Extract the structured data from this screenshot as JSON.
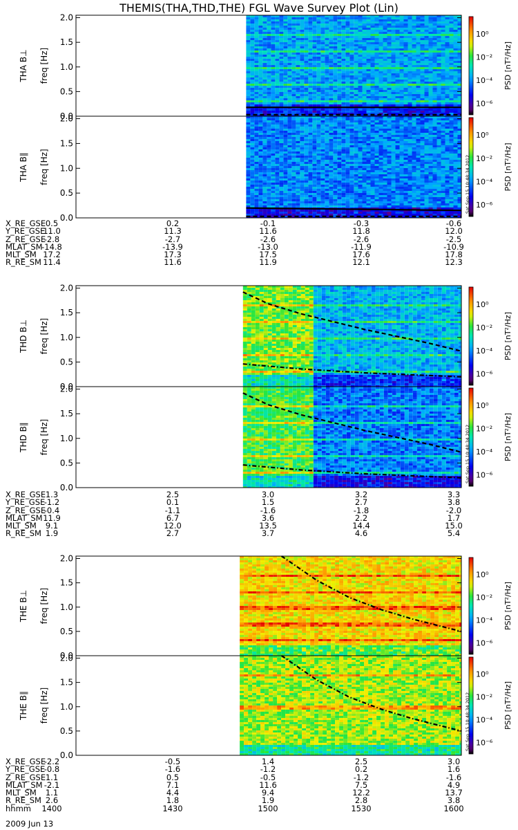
{
  "title": "THEMIS(THA,THD,THE) FGL Wave Survey Plot (Lin)",
  "colorbar": {
    "label": "PSD [nT²/Hz]",
    "ticks": [
      "10⁰",
      "10⁻²",
      "10⁻⁴",
      "10⁻⁶"
    ],
    "stamp": "Sat Sep 15 10:48:34 2012"
  },
  "yaxis": {
    "unit_label": "freq [Hz]",
    "ticks": [
      "0.0",
      "0.5",
      "1.0",
      "1.5",
      "2.0"
    ]
  },
  "chart_data": [
    {
      "type": "heatmap",
      "title": "THA B⊥",
      "ylabel": "freq [Hz]",
      "ylim": [
        0,
        2.05
      ],
      "xlim": [
        "14:00",
        "16:00"
      ],
      "data_start": "14:53",
      "baseline_log10_psd": -3.8,
      "zlim_log10": [
        -7,
        1.5
      ],
      "harmonic_lines_hz": [
        0.33,
        0.66,
        1.0,
        1.33,
        1.67
      ],
      "overlay": [
        {
          "style": "solid",
          "t": [
            "14:53",
            "16:00"
          ],
          "f": [
            0.18,
            0.18
          ]
        },
        {
          "style": "dashed",
          "t": [
            "14:53",
            "16:00"
          ],
          "f": [
            0.03,
            0.03
          ]
        }
      ]
    },
    {
      "type": "heatmap",
      "title": "THA B∥",
      "ylabel": "freq [Hz]",
      "ylim": [
        0,
        2.05
      ],
      "xlim": [
        "14:00",
        "16:00"
      ],
      "data_start": "14:53",
      "baseline_log10_psd": -4.1,
      "zlim_log10": [
        -7,
        1.5
      ],
      "harmonic_lines_hz": [],
      "overlay": [
        {
          "style": "solid",
          "t": [
            "14:53",
            "16:00"
          ],
          "f": [
            0.2,
            0.15
          ]
        },
        {
          "style": "dashed",
          "t": [
            "14:53",
            "16:00"
          ],
          "f": [
            0.03,
            0.03
          ]
        }
      ]
    },
    {
      "type": "heatmap",
      "title": "THD B⊥",
      "ylabel": "freq [Hz]",
      "ylim": [
        0,
        2.05
      ],
      "xlim": [
        "14:00",
        "16:00"
      ],
      "data_start": "14:52",
      "change_time": "15:13",
      "baseline_log10_psd_before": -1.6,
      "baseline_log10_psd_after": -3.6,
      "zlim_log10": [
        -7,
        1.5
      ],
      "harmonic_lines_hz": [
        0.33,
        0.66,
        1.0,
        1.33,
        1.67
      ],
      "overlay": [
        {
          "style": "dashed",
          "t": [
            "14:52",
            "15:00",
            "15:10",
            "15:20",
            "15:30",
            "15:40",
            "15:50",
            "16:00"
          ],
          "f": [
            1.92,
            1.68,
            1.48,
            1.32,
            1.16,
            1.02,
            0.88,
            0.72
          ]
        },
        {
          "style": "dashdot",
          "t": [
            "14:52",
            "15:10",
            "15:30",
            "16:00"
          ],
          "f": [
            0.46,
            0.36,
            0.28,
            0.2
          ]
        }
      ]
    },
    {
      "type": "heatmap",
      "title": "THD B∥",
      "ylabel": "freq [Hz]",
      "ylim": [
        0,
        2.05
      ],
      "xlim": [
        "14:00",
        "16:00"
      ],
      "data_start": "14:52",
      "change_time": "15:13",
      "baseline_log10_psd_before": -1.9,
      "baseline_log10_psd_after": -4.2,
      "zlim_log10": [
        -7,
        1.5
      ],
      "harmonic_lines_hz": [
        0.33,
        0.66,
        1.0,
        1.33,
        1.67
      ],
      "overlay": [
        {
          "style": "dashed",
          "t": [
            "14:52",
            "15:00",
            "15:10",
            "15:20",
            "15:30",
            "15:40",
            "15:50",
            "16:00"
          ],
          "f": [
            1.92,
            1.68,
            1.48,
            1.32,
            1.16,
            1.02,
            0.88,
            0.72
          ]
        },
        {
          "style": "dashdot",
          "t": [
            "14:52",
            "15:10",
            "15:30",
            "16:00"
          ],
          "f": [
            0.46,
            0.36,
            0.28,
            0.2
          ]
        }
      ]
    },
    {
      "type": "heatmap",
      "title": "THE B⊥",
      "ylabel": "freq [Hz]",
      "ylim": [
        0,
        2.05
      ],
      "xlim": [
        "14:00",
        "16:00"
      ],
      "data_start": "14:51",
      "baseline_log10_psd": -0.6,
      "zlim_log10": [
        -7,
        1.5
      ],
      "harmonic_lines_hz": [
        0.33,
        0.66,
        1.0,
        1.33,
        1.67
      ],
      "overlay": [
        {
          "style": "dashdot",
          "t": [
            "15:04",
            "15:15",
            "15:25",
            "15:35",
            "15:45",
            "16:00"
          ],
          "f": [
            2.05,
            1.55,
            1.2,
            0.95,
            0.75,
            0.5
          ]
        }
      ]
    },
    {
      "type": "heatmap",
      "title": "THE B∥",
      "ylabel": "freq [Hz]",
      "ylim": [
        0,
        2.05
      ],
      "xlim": [
        "14:00",
        "16:00"
      ],
      "data_start": "14:51",
      "baseline_log10_psd": -1.3,
      "zlim_log10": [
        -7,
        1.5
      ],
      "harmonic_lines_hz": [
        1.0,
        1.67
      ],
      "overlay": [
        {
          "style": "dashdot",
          "t": [
            "15:04",
            "15:15",
            "15:25",
            "15:35",
            "15:45",
            "16:00"
          ],
          "f": [
            2.05,
            1.55,
            1.2,
            0.95,
            0.75,
            0.5
          ]
        }
      ]
    }
  ],
  "ephemeris": [
    {
      "rows": [
        {
          "label": "X_RE_GSE",
          "values": [
            "0.5",
            "0.2",
            "-0.1",
            "-0.3",
            "-0.6"
          ]
        },
        {
          "label": "Y_RE_GSE",
          "values": [
            "11.0",
            "11.3",
            "11.6",
            "11.8",
            "12.0"
          ]
        },
        {
          "label": "Z_RE_GSE",
          "values": [
            "-2.8",
            "-2.7",
            "-2.6",
            "-2.6",
            "-2.5"
          ]
        },
        {
          "label": "MLAT_SM",
          "values": [
            "-14.8",
            "-13.9",
            "-13.0",
            "-11.9",
            "-10.9"
          ]
        },
        {
          "label": "MLT_SM",
          "values": [
            "17.2",
            "17.3",
            "17.5",
            "17.6",
            "17.8"
          ]
        },
        {
          "label": "R_RE_SM",
          "values": [
            "11.4",
            "11.6",
            "11.9",
            "12.1",
            "12.3"
          ]
        }
      ]
    },
    {
      "rows": [
        {
          "label": "X_RE_GSE",
          "values": [
            "1.3",
            "2.5",
            "3.0",
            "3.2",
            "3.3"
          ]
        },
        {
          "label": "Y_RE_GSE",
          "values": [
            "-1.2",
            "0.1",
            "1.5",
            "2.7",
            "3.8"
          ]
        },
        {
          "label": "Z_RE_GSE",
          "values": [
            "-0.4",
            "-1.1",
            "-1.6",
            "-1.8",
            "-2.0"
          ]
        },
        {
          "label": "MLAT_SM",
          "values": [
            "11.9",
            "6.7",
            "3.6",
            "2.2",
            "1.7"
          ]
        },
        {
          "label": "MLT_SM",
          "values": [
            "9.1",
            "12.0",
            "13.5",
            "14.4",
            "15.0"
          ]
        },
        {
          "label": "R_RE_SM",
          "values": [
            "1.9",
            "2.7",
            "3.7",
            "4.6",
            "5.4"
          ]
        }
      ]
    },
    {
      "rows": [
        {
          "label": "X_RE_GSE",
          "values": [
            "-2.2",
            "-0.5",
            "1.4",
            "2.5",
            "3.0"
          ]
        },
        {
          "label": "Y_RE_GSE",
          "values": [
            "-0.8",
            "-1.6",
            "-1.2",
            "0.2",
            "1.6"
          ]
        },
        {
          "label": "Z_RE_GSE",
          "values": [
            "1.1",
            "0.5",
            "-0.5",
            "-1.2",
            "-1.6"
          ]
        },
        {
          "label": "MLAT_SM",
          "values": [
            "-2.1",
            "7.1",
            "11.6",
            "7.5",
            "4.9"
          ]
        },
        {
          "label": "MLT_SM",
          "values": [
            "1.1",
            "4.4",
            "9.4",
            "12.2",
            "13.7"
          ]
        },
        {
          "label": "R_RE_SM",
          "values": [
            "2.6",
            "1.8",
            "1.9",
            "2.8",
            "3.8"
          ]
        },
        {
          "label": "hhmm",
          "values": [
            "1400",
            "1430",
            "1500",
            "1530",
            "1600"
          ]
        }
      ]
    }
  ],
  "date_label": "2009 Jun 13"
}
